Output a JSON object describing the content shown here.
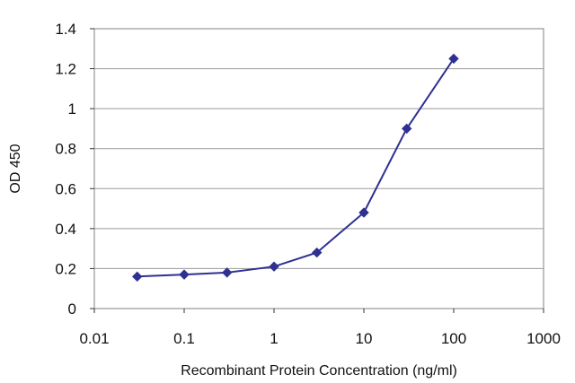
{
  "chart_data": {
    "type": "line",
    "title": "",
    "xlabel": "Recombinant Protein Concentration (ng/ml)",
    "ylabel": "OD 450",
    "xscale": "log",
    "xlim": [
      0.01,
      1000
    ],
    "ylim": [
      0,
      1.4
    ],
    "x_ticks": [
      "0.01",
      "0.1",
      "1",
      "10",
      "100",
      "1000"
    ],
    "y_ticks": [
      "0",
      "0.2",
      "0.4",
      "0.6",
      "0.8",
      "1",
      "1.2",
      "1.4"
    ],
    "grid": "horizontal",
    "legend": "none",
    "series": [
      {
        "marker": "diamond",
        "color": "#2e3192",
        "x": [
          0.03,
          0.1,
          0.3,
          1,
          3,
          10,
          30,
          100
        ],
        "y": [
          0.16,
          0.17,
          0.18,
          0.21,
          0.28,
          0.48,
          0.9,
          1.25
        ]
      }
    ]
  }
}
